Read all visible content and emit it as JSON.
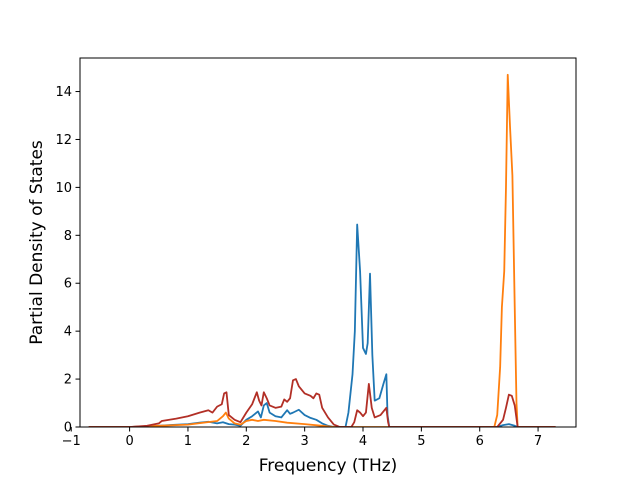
{
  "chart_data": {
    "type": "line",
    "title": "",
    "xlabel": "Frequency (THz)",
    "ylabel": "Partial Density of States",
    "xlim": [
      -0.85,
      7.65
    ],
    "ylim": [
      0,
      15.4
    ],
    "xticks": [
      -1,
      0,
      1,
      2,
      3,
      4,
      5,
      6,
      7
    ],
    "yticks": [
      0,
      2,
      4,
      6,
      8,
      10,
      12,
      14
    ],
    "grid": false,
    "legend": "none",
    "series": [
      {
        "color": "#1f77b4",
        "points": [
          [
            -0.7,
            0
          ],
          [
            0.0,
            0
          ],
          [
            0.5,
            0.05
          ],
          [
            0.7,
            0.08
          ],
          [
            1.0,
            0.12
          ],
          [
            1.2,
            0.18
          ],
          [
            1.35,
            0.22
          ],
          [
            1.5,
            0.15
          ],
          [
            1.6,
            0.2
          ],
          [
            1.7,
            0.12
          ],
          [
            1.8,
            0.1
          ],
          [
            1.9,
            0.05
          ],
          [
            2.0,
            0.3
          ],
          [
            2.1,
            0.45
          ],
          [
            2.2,
            0.65
          ],
          [
            2.25,
            0.4
          ],
          [
            2.3,
            0.9
          ],
          [
            2.35,
            1.0
          ],
          [
            2.4,
            0.6
          ],
          [
            2.5,
            0.45
          ],
          [
            2.6,
            0.4
          ],
          [
            2.7,
            0.7
          ],
          [
            2.75,
            0.55
          ],
          [
            2.8,
            0.6
          ],
          [
            2.9,
            0.72
          ],
          [
            3.0,
            0.5
          ],
          [
            3.1,
            0.38
          ],
          [
            3.2,
            0.3
          ],
          [
            3.3,
            0.15
          ],
          [
            3.4,
            0.05
          ],
          [
            3.5,
            0.0
          ],
          [
            3.7,
            0.0
          ],
          [
            3.75,
            0.6
          ],
          [
            3.82,
            2.2
          ],
          [
            3.86,
            4.0
          ],
          [
            3.9,
            8.45
          ],
          [
            3.95,
            6.5
          ],
          [
            4.0,
            3.3
          ],
          [
            4.05,
            3.05
          ],
          [
            4.08,
            3.5
          ],
          [
            4.12,
            6.4
          ],
          [
            4.16,
            3.0
          ],
          [
            4.2,
            1.1
          ],
          [
            4.28,
            1.2
          ],
          [
            4.35,
            1.8
          ],
          [
            4.4,
            2.2
          ],
          [
            4.42,
            0.5
          ],
          [
            4.45,
            0.0
          ],
          [
            6.3,
            0.0
          ],
          [
            6.4,
            0.08
          ],
          [
            6.5,
            0.12
          ],
          [
            6.6,
            0.05
          ],
          [
            6.65,
            0.0
          ],
          [
            7.3,
            0.0
          ]
        ]
      },
      {
        "color": "#ff7f0e",
        "points": [
          [
            -0.7,
            0
          ],
          [
            0.0,
            0
          ],
          [
            0.5,
            0.05
          ],
          [
            1.0,
            0.1
          ],
          [
            1.5,
            0.25
          ],
          [
            1.6,
            0.45
          ],
          [
            1.65,
            0.6
          ],
          [
            1.7,
            0.35
          ],
          [
            1.8,
            0.15
          ],
          [
            1.9,
            0.1
          ],
          [
            2.0,
            0.25
          ],
          [
            2.1,
            0.3
          ],
          [
            2.2,
            0.25
          ],
          [
            2.3,
            0.3
          ],
          [
            2.5,
            0.25
          ],
          [
            2.7,
            0.18
          ],
          [
            3.0,
            0.12
          ],
          [
            3.3,
            0.05
          ],
          [
            3.5,
            0.0
          ],
          [
            6.25,
            0.0
          ],
          [
            6.3,
            0.5
          ],
          [
            6.35,
            2.5
          ],
          [
            6.38,
            5.0
          ],
          [
            6.42,
            6.5
          ],
          [
            6.45,
            10.0
          ],
          [
            6.48,
            14.7
          ],
          [
            6.52,
            12.5
          ],
          [
            6.56,
            10.5
          ],
          [
            6.6,
            5.0
          ],
          [
            6.63,
            1.0
          ],
          [
            6.65,
            0.0
          ],
          [
            7.3,
            0.0
          ]
        ]
      },
      {
        "color": "#b22f26",
        "points": [
          [
            -0.7,
            0
          ],
          [
            0.0,
            0
          ],
          [
            0.3,
            0.05
          ],
          [
            0.5,
            0.15
          ],
          [
            0.55,
            0.25
          ],
          [
            0.8,
            0.35
          ],
          [
            1.0,
            0.45
          ],
          [
            1.2,
            0.6
          ],
          [
            1.35,
            0.7
          ],
          [
            1.42,
            0.6
          ],
          [
            1.5,
            0.85
          ],
          [
            1.58,
            0.95
          ],
          [
            1.62,
            1.4
          ],
          [
            1.66,
            1.45
          ],
          [
            1.7,
            0.5
          ],
          [
            1.8,
            0.3
          ],
          [
            1.9,
            0.2
          ],
          [
            2.0,
            0.6
          ],
          [
            2.1,
            0.95
          ],
          [
            2.18,
            1.45
          ],
          [
            2.22,
            1.1
          ],
          [
            2.26,
            0.9
          ],
          [
            2.3,
            1.45
          ],
          [
            2.35,
            1.2
          ],
          [
            2.4,
            0.9
          ],
          [
            2.5,
            0.8
          ],
          [
            2.6,
            0.85
          ],
          [
            2.65,
            1.15
          ],
          [
            2.7,
            1.05
          ],
          [
            2.75,
            1.2
          ],
          [
            2.8,
            1.95
          ],
          [
            2.85,
            2.0
          ],
          [
            2.9,
            1.7
          ],
          [
            3.0,
            1.4
          ],
          [
            3.1,
            1.3
          ],
          [
            3.15,
            1.2
          ],
          [
            3.2,
            1.4
          ],
          [
            3.25,
            1.35
          ],
          [
            3.3,
            0.8
          ],
          [
            3.4,
            0.4
          ],
          [
            3.5,
            0.1
          ],
          [
            3.6,
            0.0
          ],
          [
            3.8,
            0.0
          ],
          [
            3.85,
            0.2
          ],
          [
            3.9,
            0.7
          ],
          [
            3.95,
            0.6
          ],
          [
            4.0,
            0.45
          ],
          [
            4.05,
            0.6
          ],
          [
            4.1,
            1.8
          ],
          [
            4.15,
            0.8
          ],
          [
            4.2,
            0.4
          ],
          [
            4.3,
            0.5
          ],
          [
            4.4,
            0.8
          ],
          [
            4.43,
            0.2
          ],
          [
            4.45,
            0.0
          ],
          [
            6.3,
            0.0
          ],
          [
            6.4,
            0.3
          ],
          [
            6.45,
            0.8
          ],
          [
            6.5,
            1.35
          ],
          [
            6.55,
            1.3
          ],
          [
            6.6,
            0.9
          ],
          [
            6.65,
            0.0
          ],
          [
            7.3,
            0.0
          ]
        ]
      }
    ]
  }
}
